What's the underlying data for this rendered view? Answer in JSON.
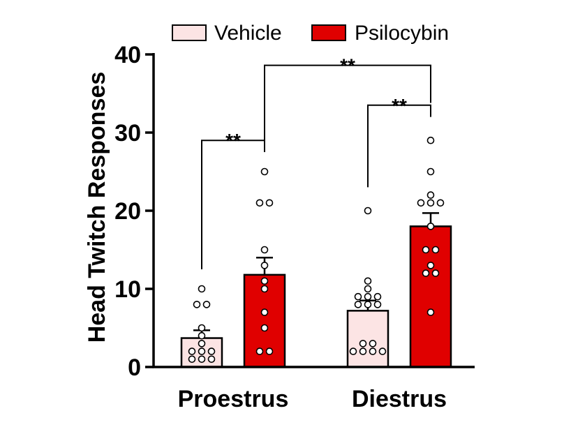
{
  "chart_data": {
    "type": "bar",
    "ylabel": "Head Twitch Responses",
    "ylim": [
      0,
      40
    ],
    "yticks": [
      0,
      10,
      20,
      30,
      40
    ],
    "categories": [
      "Proestrus",
      "Diestrus"
    ],
    "series": [
      {
        "name": "Vehicle",
        "color": "#fce4e4",
        "values": [
          3.7,
          7.2
        ],
        "errors": [
          1.0,
          1.3
        ],
        "points": [
          [
            10,
            8,
            8,
            5,
            4,
            3,
            2,
            2,
            2,
            1,
            1,
            1
          ],
          [
            20,
            11,
            10,
            9,
            9,
            9,
            8,
            8,
            8,
            3,
            3,
            2,
            2,
            2,
            2
          ]
        ]
      },
      {
        "name": "Psilocybin",
        "color": "#e00000",
        "values": [
          11.8,
          18.0
        ],
        "errors": [
          2.2,
          1.7
        ],
        "points": [
          [
            25,
            21,
            21,
            15,
            13,
            11,
            10,
            7,
            5,
            2,
            2
          ],
          [
            29,
            25,
            22,
            21,
            21,
            21,
            18,
            15,
            15,
            13,
            12,
            12,
            7
          ]
        ]
      }
    ],
    "annotations": [
      {
        "text": "**",
        "from": "Proestrus Vehicle",
        "to": "Proestrus Psilocybin"
      },
      {
        "text": "**",
        "from": "Diestrus Vehicle",
        "to": "Diestrus Psilocybin"
      },
      {
        "text": "**",
        "from": "Proestrus Psilocybin",
        "to": "Diestrus Psilocybin"
      }
    ],
    "legend_position": "top",
    "grid": false
  }
}
